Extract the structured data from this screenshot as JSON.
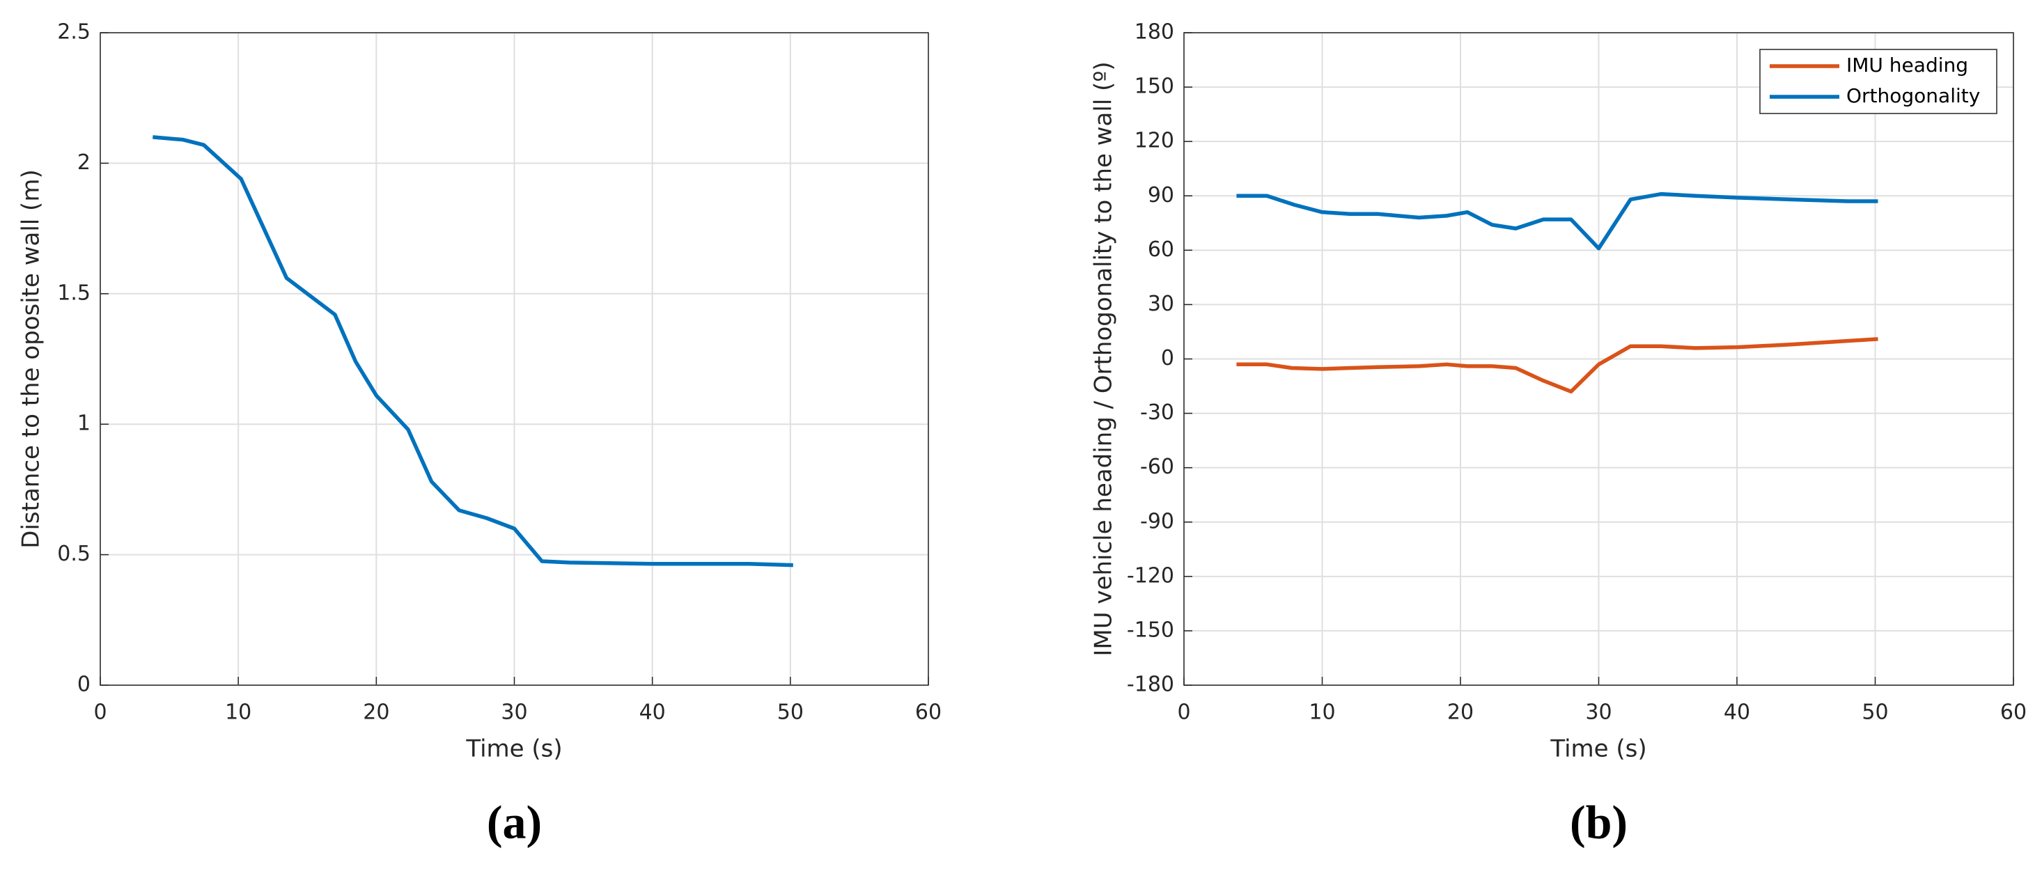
{
  "chart_data": [
    {
      "type": "line",
      "xlabel": "Time (s)",
      "ylabel": "Distance to the  oposite  wall (m)",
      "sublabel": "(a)",
      "x": [
        3.8,
        6,
        7.5,
        10.2,
        13.5,
        17,
        18.5,
        20,
        22.3,
        24,
        26,
        28,
        30,
        32,
        34,
        40,
        47,
        50.2
      ],
      "values": [
        2.1,
        2.09,
        2.07,
        1.94,
        1.56,
        1.42,
        1.24,
        1.11,
        0.98,
        0.78,
        0.67,
        0.64,
        0.6,
        0.475,
        0.47,
        0.465,
        0.465,
        0.46
      ],
      "color": "#0072bd",
      "xlim": [
        0,
        60
      ],
      "xticks": [
        0,
        10,
        20,
        30,
        40,
        50,
        60
      ],
      "ylim": [
        0,
        2.5
      ],
      "yticks": [
        0,
        0.5,
        1,
        1.5,
        2,
        2.5
      ],
      "grid": true
    },
    {
      "type": "line",
      "xlabel": "Time (s)",
      "ylabel": "IMU vehicle heading / Orthogonality to the wall (º)",
      "sublabel": "(b)",
      "legend": "upper right",
      "series": [
        {
          "name": "IMU heading",
          "color": "#d95319",
          "x": [
            3.8,
            6,
            7.8,
            10,
            12,
            14,
            17,
            19,
            20.5,
            22.3,
            24,
            26,
            28,
            30,
            32.3,
            34.5,
            37,
            40,
            44,
            50.2
          ],
          "values": [
            -3,
            -3,
            -5,
            -5.5,
            -5,
            -4.5,
            -4,
            -3,
            -4,
            -4,
            -5,
            -12,
            -18,
            -3,
            7,
            7,
            6,
            6.5,
            8,
            11
          ]
        },
        {
          "name": "Orthogonality",
          "color": "#0072bd",
          "x": [
            3.8,
            6,
            8,
            10,
            12,
            14,
            17,
            19,
            20.5,
            22.3,
            24,
            26,
            28,
            30,
            32.3,
            34.5,
            37,
            40,
            44,
            48,
            50.2
          ],
          "values": [
            90,
            90,
            85,
            81,
            80,
            80,
            78,
            79,
            81,
            74,
            72,
            77,
            77,
            61,
            88,
            91,
            90,
            89,
            88,
            87,
            87
          ]
        }
      ],
      "xlim": [
        0,
        60
      ],
      "xticks": [
        0,
        10,
        20,
        30,
        40,
        50,
        60
      ],
      "ylim": [
        -180,
        180
      ],
      "yticks": [
        -180,
        -150,
        -120,
        -90,
        -60,
        -30,
        0,
        30,
        60,
        90,
        120,
        150,
        180
      ],
      "grid": true
    }
  ]
}
